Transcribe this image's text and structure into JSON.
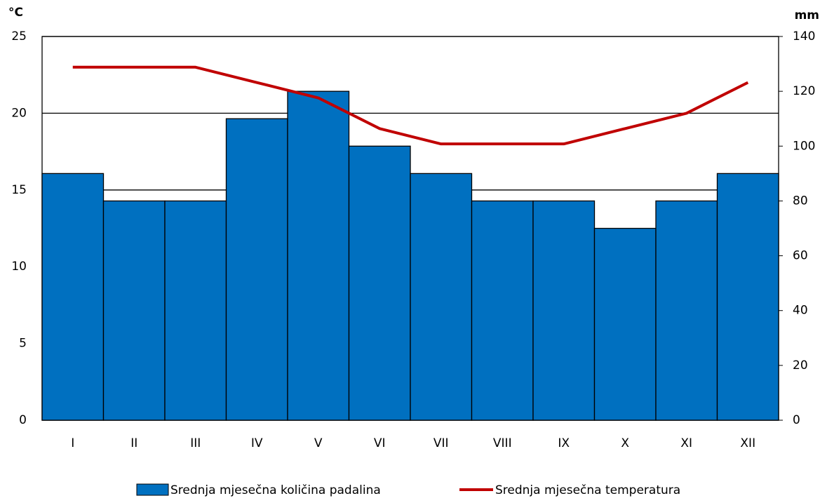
{
  "chart_data": {
    "type": "bar_line",
    "y_axis_label": "°C",
    "y2_axis_label": "mm",
    "categories": [
      "I",
      "II",
      "III",
      "IV",
      "V",
      "VI",
      "VII",
      "VIII",
      "IX",
      "X",
      "XI",
      "XII"
    ],
    "series": [
      {
        "name": "Srednja mjesečna količina padalina",
        "type": "bar",
        "axis": "y2",
        "color": "#0070c0",
        "values": [
          90,
          80,
          80,
          110,
          120,
          100,
          90,
          80,
          80,
          70,
          80,
          90
        ]
      },
      {
        "name": "Srednja mjesečna temperatura",
        "type": "line",
        "axis": "y",
        "color": "#c00000",
        "values": [
          23,
          23,
          23,
          22,
          21,
          19,
          18,
          18,
          18,
          19,
          20,
          22
        ]
      }
    ],
    "ylim": [
      0,
      25
    ],
    "yticks": [
      0,
      5,
      10,
      15,
      20,
      25
    ],
    "y2lim": [
      0,
      140
    ],
    "y2ticks": [
      0,
      20,
      40,
      60,
      80,
      100,
      120,
      140
    ],
    "grid": true,
    "legend": "bottom"
  }
}
